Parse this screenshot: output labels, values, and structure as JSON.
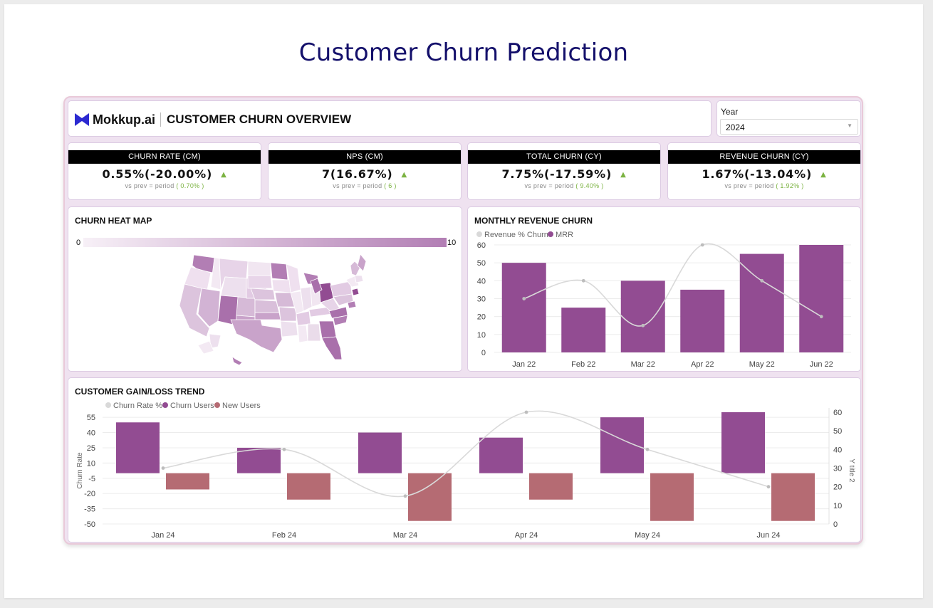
{
  "page": {
    "title": "Customer Churn Prediction"
  },
  "header": {
    "brand": "Mokkup.ai",
    "title": "CUSTOMER CHURN OVERVIEW"
  },
  "year_filter": {
    "label": "Year",
    "value": "2024"
  },
  "kpis": [
    {
      "title": "CHURN RATE (CM)",
      "value": "0.55%(-20.00%)",
      "sub_prefix": "vs prev =  period ",
      "sub_value": "( 0.70% )"
    },
    {
      "title": "NPS (CM)",
      "value": "7(16.67%)",
      "sub_prefix": "vs prev =  period ",
      "sub_value": "( 6 )"
    },
    {
      "title": "TOTAL CHURN (CY)",
      "value": "7.75%(-17.59%)",
      "sub_prefix": "vs prev =  period ",
      "sub_value": "( 9.40% )"
    },
    {
      "title": "REVENUE CHURN (CY)",
      "value": "1.67%(-13.04%)",
      "sub_prefix": "vs prev =  period ",
      "sub_value": "( 1.92% )"
    }
  ],
  "heat_map": {
    "title": "CHURN HEAT MAP",
    "scale_min": "0",
    "scale_max": "10"
  },
  "colors": {
    "primary": "#924c92",
    "loss": "#b56b73",
    "line": "#d9d9d9",
    "positive": "#7cb342",
    "title": "#14106b"
  },
  "icons": {
    "kpi_trend": "triangle-up-icon",
    "brand": "mokkup-logo"
  },
  "chart_data": [
    {
      "type": "bar",
      "title": "MONTHLY REVENUE CHURN",
      "categories": [
        "Jan 22",
        "Feb 22",
        "Mar 22",
        "Apr 22",
        "May 22",
        "Jun 22"
      ],
      "series": [
        {
          "name": "Revenue % Churn",
          "kind": "line",
          "values": [
            30,
            40,
            15,
            60,
            40,
            20
          ]
        },
        {
          "name": "MRR",
          "kind": "bar",
          "values": [
            50,
            25,
            40,
            35,
            55,
            60
          ]
        }
      ],
      "y_ticks": [
        "0",
        "10",
        "20",
        "30",
        "40",
        "50",
        "60"
      ],
      "ylim": [
        0,
        60
      ],
      "legend": "top-left"
    },
    {
      "type": "bar",
      "title": "CUSTOMER GAIN/LOSS TREND",
      "categories": [
        "Jan 24",
        "Feb 24",
        "Mar 24",
        "Apr 24",
        "May 24",
        "Jun 24"
      ],
      "series": [
        {
          "name": "Churn Rate %",
          "kind": "line",
          "axis": "right",
          "values": [
            30,
            40,
            15,
            60,
            40,
            20
          ]
        },
        {
          "name": "Churn Users",
          "kind": "bar",
          "axis": "left",
          "values": [
            50,
            25,
            40,
            35,
            55,
            60
          ]
        },
        {
          "name": "New Users",
          "kind": "bar",
          "axis": "left",
          "values": [
            -16,
            -26,
            -47,
            -26,
            -47,
            -47
          ]
        }
      ],
      "ylabel": "Churn Rate",
      "y2label": "Y title 2",
      "y_ticks": [
        "55",
        "40",
        "25",
        "10",
        "-5",
        "-20",
        "-35",
        "-50"
      ],
      "y_tick_values": [
        55,
        40,
        25,
        10,
        -5,
        -20,
        -35,
        -50
      ],
      "ylim": [
        -50,
        60
      ],
      "y2_ticks": [
        "60",
        "50",
        "40",
        "30",
        "20",
        "10",
        "0"
      ],
      "y2lim": [
        0,
        60
      ],
      "legend": "top-left"
    }
  ]
}
